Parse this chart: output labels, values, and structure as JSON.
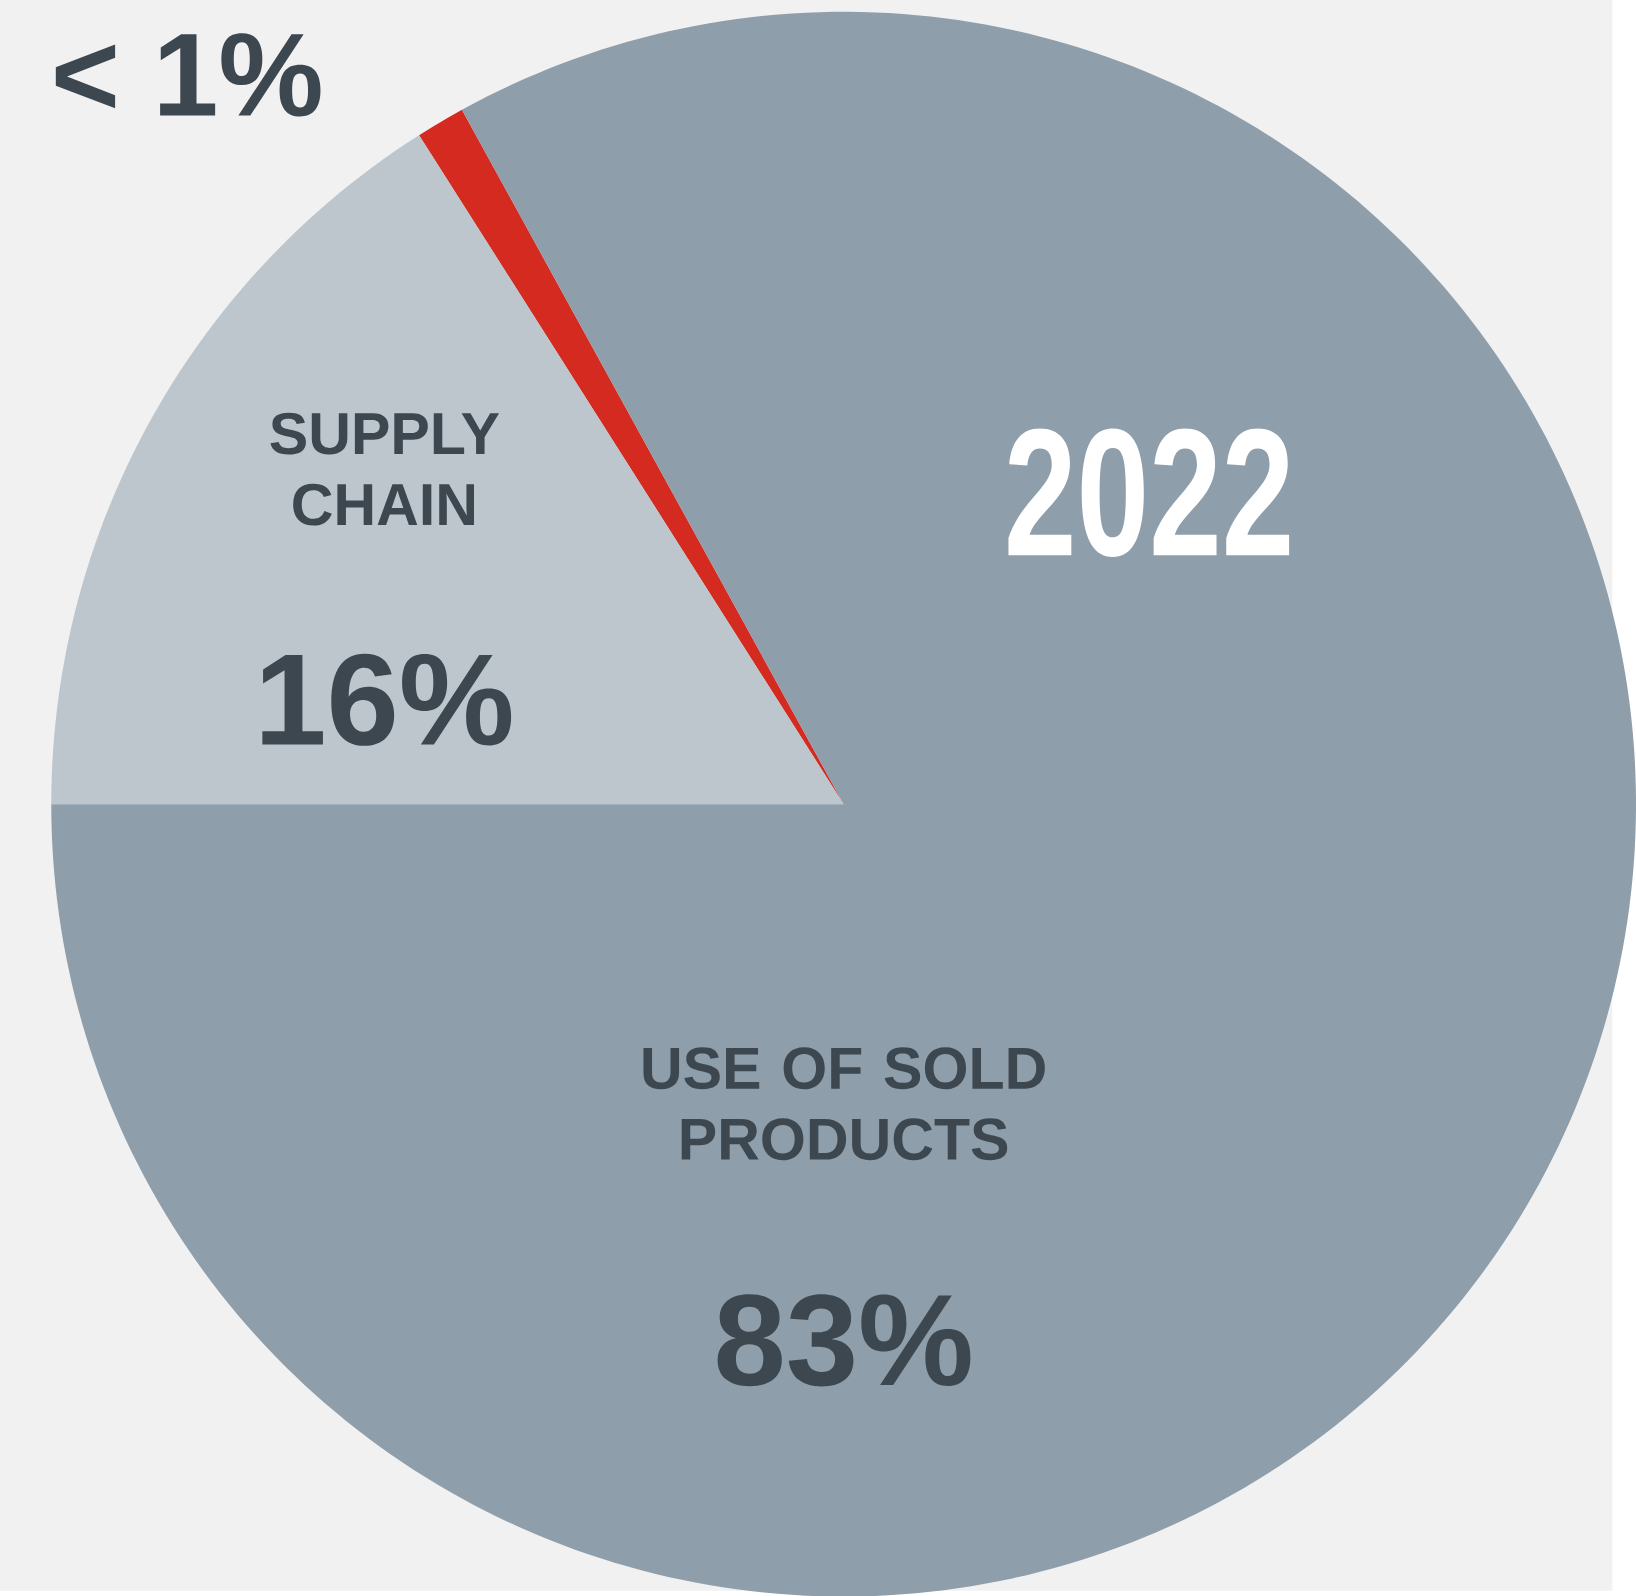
{
  "chart_data": {
    "type": "pie",
    "title": "2022",
    "categories": [
      null,
      "SUPPLY CHAIN",
      "USE OF SOLD PRODUCTS"
    ],
    "values": [
      1,
      16,
      83
    ],
    "value_labels": [
      "< 1%",
      "16%",
      "83%"
    ],
    "colors": [
      "#d42a1f",
      "#bcc6cc",
      "#8e9eab"
    ]
  }
}
